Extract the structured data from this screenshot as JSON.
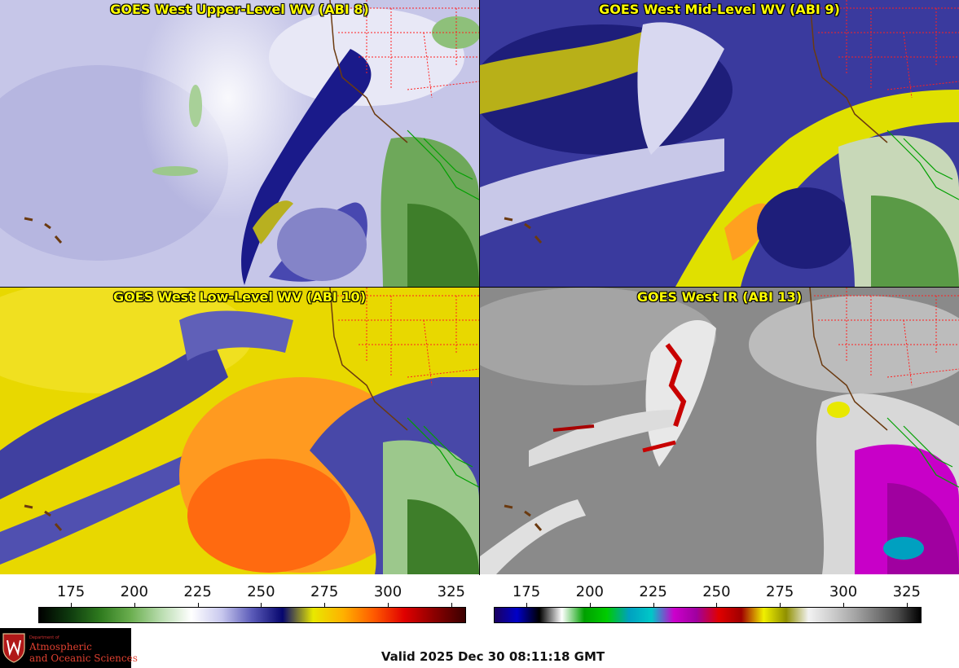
{
  "panels": [
    {
      "title": "GOES West Upper-Level WV (ABI 8)",
      "palette": "wv"
    },
    {
      "title": "GOES West Mid-Level WV (ABI 9)",
      "palette": "wv"
    },
    {
      "title": "GOES West Low-Level WV (ABI 10)",
      "palette": "wv"
    },
    {
      "title": "GOES West IR (ABI 13)",
      "palette": "ir"
    }
  ],
  "wv_scale": {
    "ticks": [
      "175",
      "200",
      "225",
      "250",
      "275",
      "300",
      "325"
    ],
    "colors": [
      "#000000",
      "#0e3a0e",
      "#2e7a1e",
      "#6aae4e",
      "#b8dcae",
      "#ffffff",
      "#c8c8ee",
      "#5a5ab8",
      "#06066e",
      "#e8e800",
      "#ffb000",
      "#ff5a00",
      "#e00000",
      "#8a0000",
      "#3a0000"
    ]
  },
  "ir_scale": {
    "ticks": [
      "175",
      "200",
      "225",
      "250",
      "275",
      "300",
      "325"
    ],
    "colors": [
      "#1a0060",
      "#0000c8",
      "#000000",
      "#ffffff",
      "#00a000",
      "#00cc00",
      "#00a0c0",
      "#00c8c8",
      "#cc00cc",
      "#a000a0",
      "#e00000",
      "#a00000",
      "#f0f000",
      "#909000",
      "#f2f2f2",
      "#cfcfcf",
      "#a8a8a8",
      "#7a7a7a",
      "#4a4a4a",
      "#000000"
    ]
  },
  "logo": {
    "dept": "Department of",
    "line1": "Atmospheric",
    "line2": "and Oceanic Sciences"
  },
  "valid_time": "Valid 2025 Dec 30 08:11:18 GMT",
  "colors": {
    "title_text": "#ffff00",
    "state_lines": "#ff2020",
    "coastline": "#6b3a10",
    "mexico_border": "#00a000"
  }
}
